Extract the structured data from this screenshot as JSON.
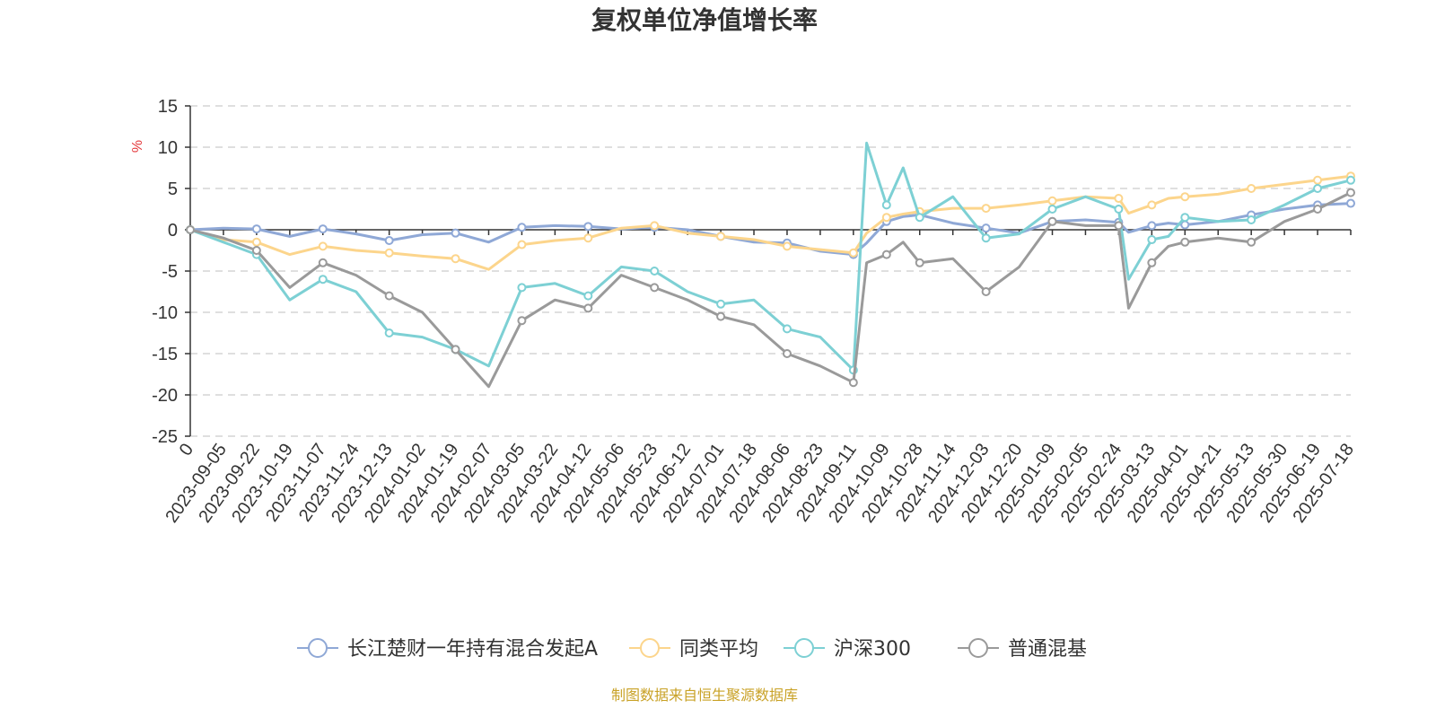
{
  "chart_data": {
    "type": "line",
    "title": "复权单位净值增长率",
    "ylabel": "%",
    "xlabel": "",
    "ylim": [
      -25,
      15
    ],
    "yticks": [
      15,
      10,
      5,
      0,
      -5,
      -10,
      -15,
      -20,
      -25
    ],
    "x_tick_labels": [
      "0",
      "2023-09-05",
      "2023-09-22",
      "2023-10-19",
      "2023-11-07",
      "2023-11-24",
      "2023-12-13",
      "2024-01-02",
      "2024-01-19",
      "2024-02-07",
      "2024-03-05",
      "2024-03-22",
      "2024-04-12",
      "2024-05-06",
      "2024-05-23",
      "2024-06-12",
      "2024-07-01",
      "2024-07-18",
      "2024-08-06",
      "2024-08-23",
      "2024-09-11",
      "2024-10-09",
      "2024-10-28",
      "2024-11-14",
      "2024-12-03",
      "2024-12-20",
      "2025-01-09",
      "2025-02-05",
      "2025-02-24",
      "2025-03-13",
      "2025-04-01",
      "2025-04-21",
      "2025-05-13",
      "2025-05-30",
      "2025-06-19",
      "2025-07-18"
    ],
    "x_positions": [
      0,
      1,
      2,
      3,
      4,
      5,
      6,
      7,
      8,
      9,
      10,
      11,
      12,
      13,
      14,
      15,
      16,
      17,
      18,
      19,
      20,
      20.4,
      21,
      21.5,
      22,
      23,
      24,
      25,
      26,
      27,
      28,
      28.3,
      29,
      29.5,
      30,
      31,
      32,
      33,
      34,
      35
    ],
    "grid": true,
    "legend_position": "bottom",
    "source_note": "制图数据来自恒生聚源数据库",
    "series": [
      {
        "name": "长江楚财一年持有混合发起A",
        "color": "#8fa8d6",
        "values": [
          0,
          0.2,
          0.1,
          -0.8,
          0.1,
          -0.5,
          -1.3,
          -0.6,
          -0.4,
          -1.5,
          0.3,
          0.5,
          0.4,
          0.1,
          0.3,
          0,
          -0.8,
          -1.5,
          -1.6,
          -2.6,
          -3,
          -1.6,
          1.0,
          1.6,
          1.8,
          0.8,
          0.2,
          -0.4,
          1.0,
          1.2,
          0.9,
          -0.3,
          0.5,
          0.8,
          0.6,
          1.0,
          1.8,
          2.5,
          3.0,
          3.2
        ]
      },
      {
        "name": "同类平均",
        "color": "#fcd58c",
        "values": [
          0,
          -1.2,
          -1.5,
          -3.0,
          -2.0,
          -2.5,
          -2.8,
          -3.2,
          -3.5,
          -4.8,
          -1.8,
          -1.3,
          -1.0,
          0.2,
          0.5,
          -0.4,
          -0.8,
          -1.2,
          -2.0,
          -2.4,
          -2.8,
          -0.4,
          1.5,
          1.9,
          2.2,
          2.6,
          2.6,
          3.0,
          3.5,
          4.0,
          3.8,
          2.0,
          3.0,
          3.8,
          4.0,
          4.3,
          5.0,
          5.5,
          6.0,
          6.5
        ]
      },
      {
        "name": "沪深300",
        "color": "#7dd0d4",
        "values": [
          0,
          -1.5,
          -3.0,
          -8.5,
          -6.0,
          -7.5,
          -12.5,
          -13.0,
          -14.5,
          -16.5,
          -7.0,
          -6.5,
          -8.0,
          -4.5,
          -5.0,
          -7.5,
          -9.0,
          -8.5,
          -12.0,
          -13.0,
          -17.0,
          10.5,
          3.0,
          7.5,
          1.5,
          4.0,
          -1.0,
          -0.5,
          2.5,
          4.0,
          2.5,
          -6.0,
          -1.2,
          -0.8,
          1.5,
          1.0,
          1.2,
          3.0,
          5.0,
          6.0
        ]
      },
      {
        "name": "普通混基",
        "color": "#9a9a9a",
        "values": [
          0,
          -1.0,
          -2.5,
          -7.0,
          -4.0,
          -5.5,
          -8.0,
          -10.0,
          -14.5,
          -19.0,
          -11.0,
          -8.5,
          -9.5,
          -5.5,
          -7.0,
          -8.5,
          -10.5,
          -11.5,
          -15.0,
          -16.5,
          -18.5,
          -4.0,
          -3.0,
          -1.5,
          -4.0,
          -3.5,
          -7.5,
          -4.5,
          1.0,
          0.5,
          0.5,
          -9.5,
          -4.0,
          -2.0,
          -1.5,
          -1.0,
          -1.5,
          1.0,
          2.5,
          4.5
        ]
      }
    ]
  }
}
